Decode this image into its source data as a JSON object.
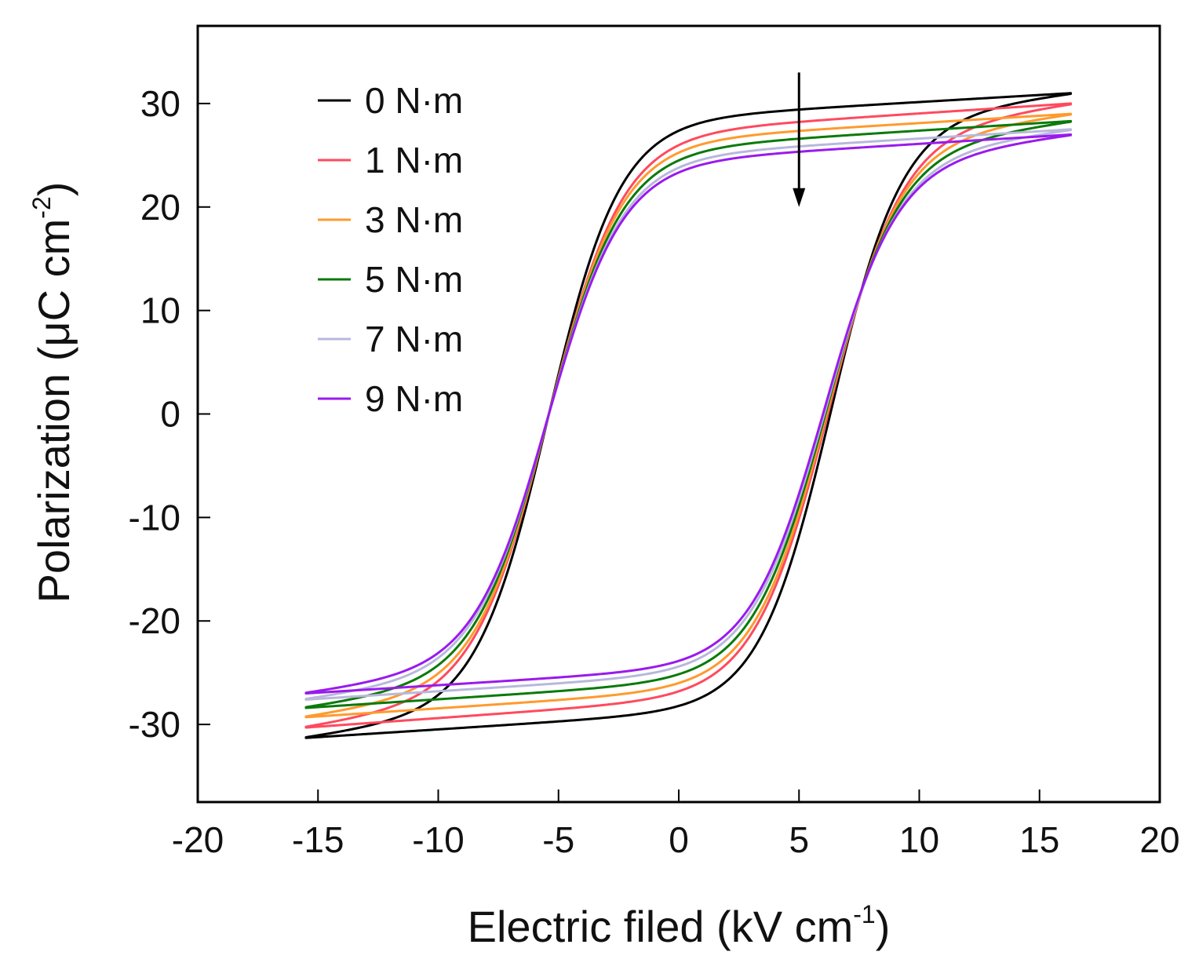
{
  "chart_data": {
    "type": "line",
    "title": "",
    "xlabel": {
      "main": "Electric filed (kV cm",
      "sup": "-1",
      "close": ")"
    },
    "ylabel": {
      "main": "Polarization (μC cm",
      "sup": "-2",
      "close": ")"
    },
    "xlim": [
      -20,
      20
    ],
    "ylim": [
      -37.5,
      37.5
    ],
    "xticks": [
      -20,
      -15,
      -10,
      -5,
      0,
      5,
      10,
      15,
      20
    ],
    "yticks": [
      -30,
      -20,
      -10,
      0,
      10,
      20,
      30
    ],
    "grid": false,
    "legend_position": "top-left",
    "annotation": {
      "type": "arrow",
      "description": "decreasing polarization with increasing torque",
      "x": 5,
      "y_start": 33,
      "y_end": 20
    },
    "series": [
      {
        "name": "0 N·m",
        "color": "#000000",
        "Emax": 16.3,
        "Emin": -15.5,
        "Pmax": 31.0,
        "Pmin": -31.3,
        "Pr": 27.0,
        "PsatUp": 30.5,
        "PsatDown": 31.3,
        "EcPos": 6.3,
        "EcNeg": -5.4
      },
      {
        "name": "1 N·m",
        "color": "#ff4a5e",
        "Emax": 16.3,
        "Emin": -15.5,
        "Pmax": 30.0,
        "Pmin": -30.3,
        "Pr": 25.5,
        "PsatUp": 29.5,
        "PsatDown": 30.0,
        "EcPos": 6.2,
        "EcNeg": -5.4
      },
      {
        "name": "3 N·m",
        "color": "#ff9a2e",
        "Emax": 16.3,
        "Emin": -15.5,
        "Pmax": 29.0,
        "Pmin": -29.3,
        "Pr": 24.8,
        "PsatUp": 28.6,
        "PsatDown": 29.0,
        "EcPos": 6.15,
        "EcNeg": -5.4
      },
      {
        "name": "5 N·m",
        "color": "#0a7a0a",
        "Emax": 16.3,
        "Emin": -15.5,
        "Pmax": 28.3,
        "Pmin": -28.4,
        "Pr": 24.0,
        "PsatUp": 27.8,
        "PsatDown": 28.3,
        "EcPos": 6.1,
        "EcNeg": -5.4
      },
      {
        "name": "7 N·m",
        "color": "#b8b8dc",
        "Emax": 16.3,
        "Emin": -15.5,
        "Pmax": 27.5,
        "Pmin": -27.6,
        "Pr": 23.3,
        "PsatUp": 27.1,
        "PsatDown": 27.5,
        "EcPos": 6.05,
        "EcNeg": -5.4
      },
      {
        "name": "9 N·m",
        "color": "#9a1aee",
        "Emax": 16.3,
        "Emin": -15.5,
        "Pmax": 27.0,
        "Pmin": -27.0,
        "Pr": 22.8,
        "PsatUp": 26.5,
        "PsatDown": 27.0,
        "EcPos": 6.0,
        "EcNeg": -5.4
      }
    ]
  }
}
